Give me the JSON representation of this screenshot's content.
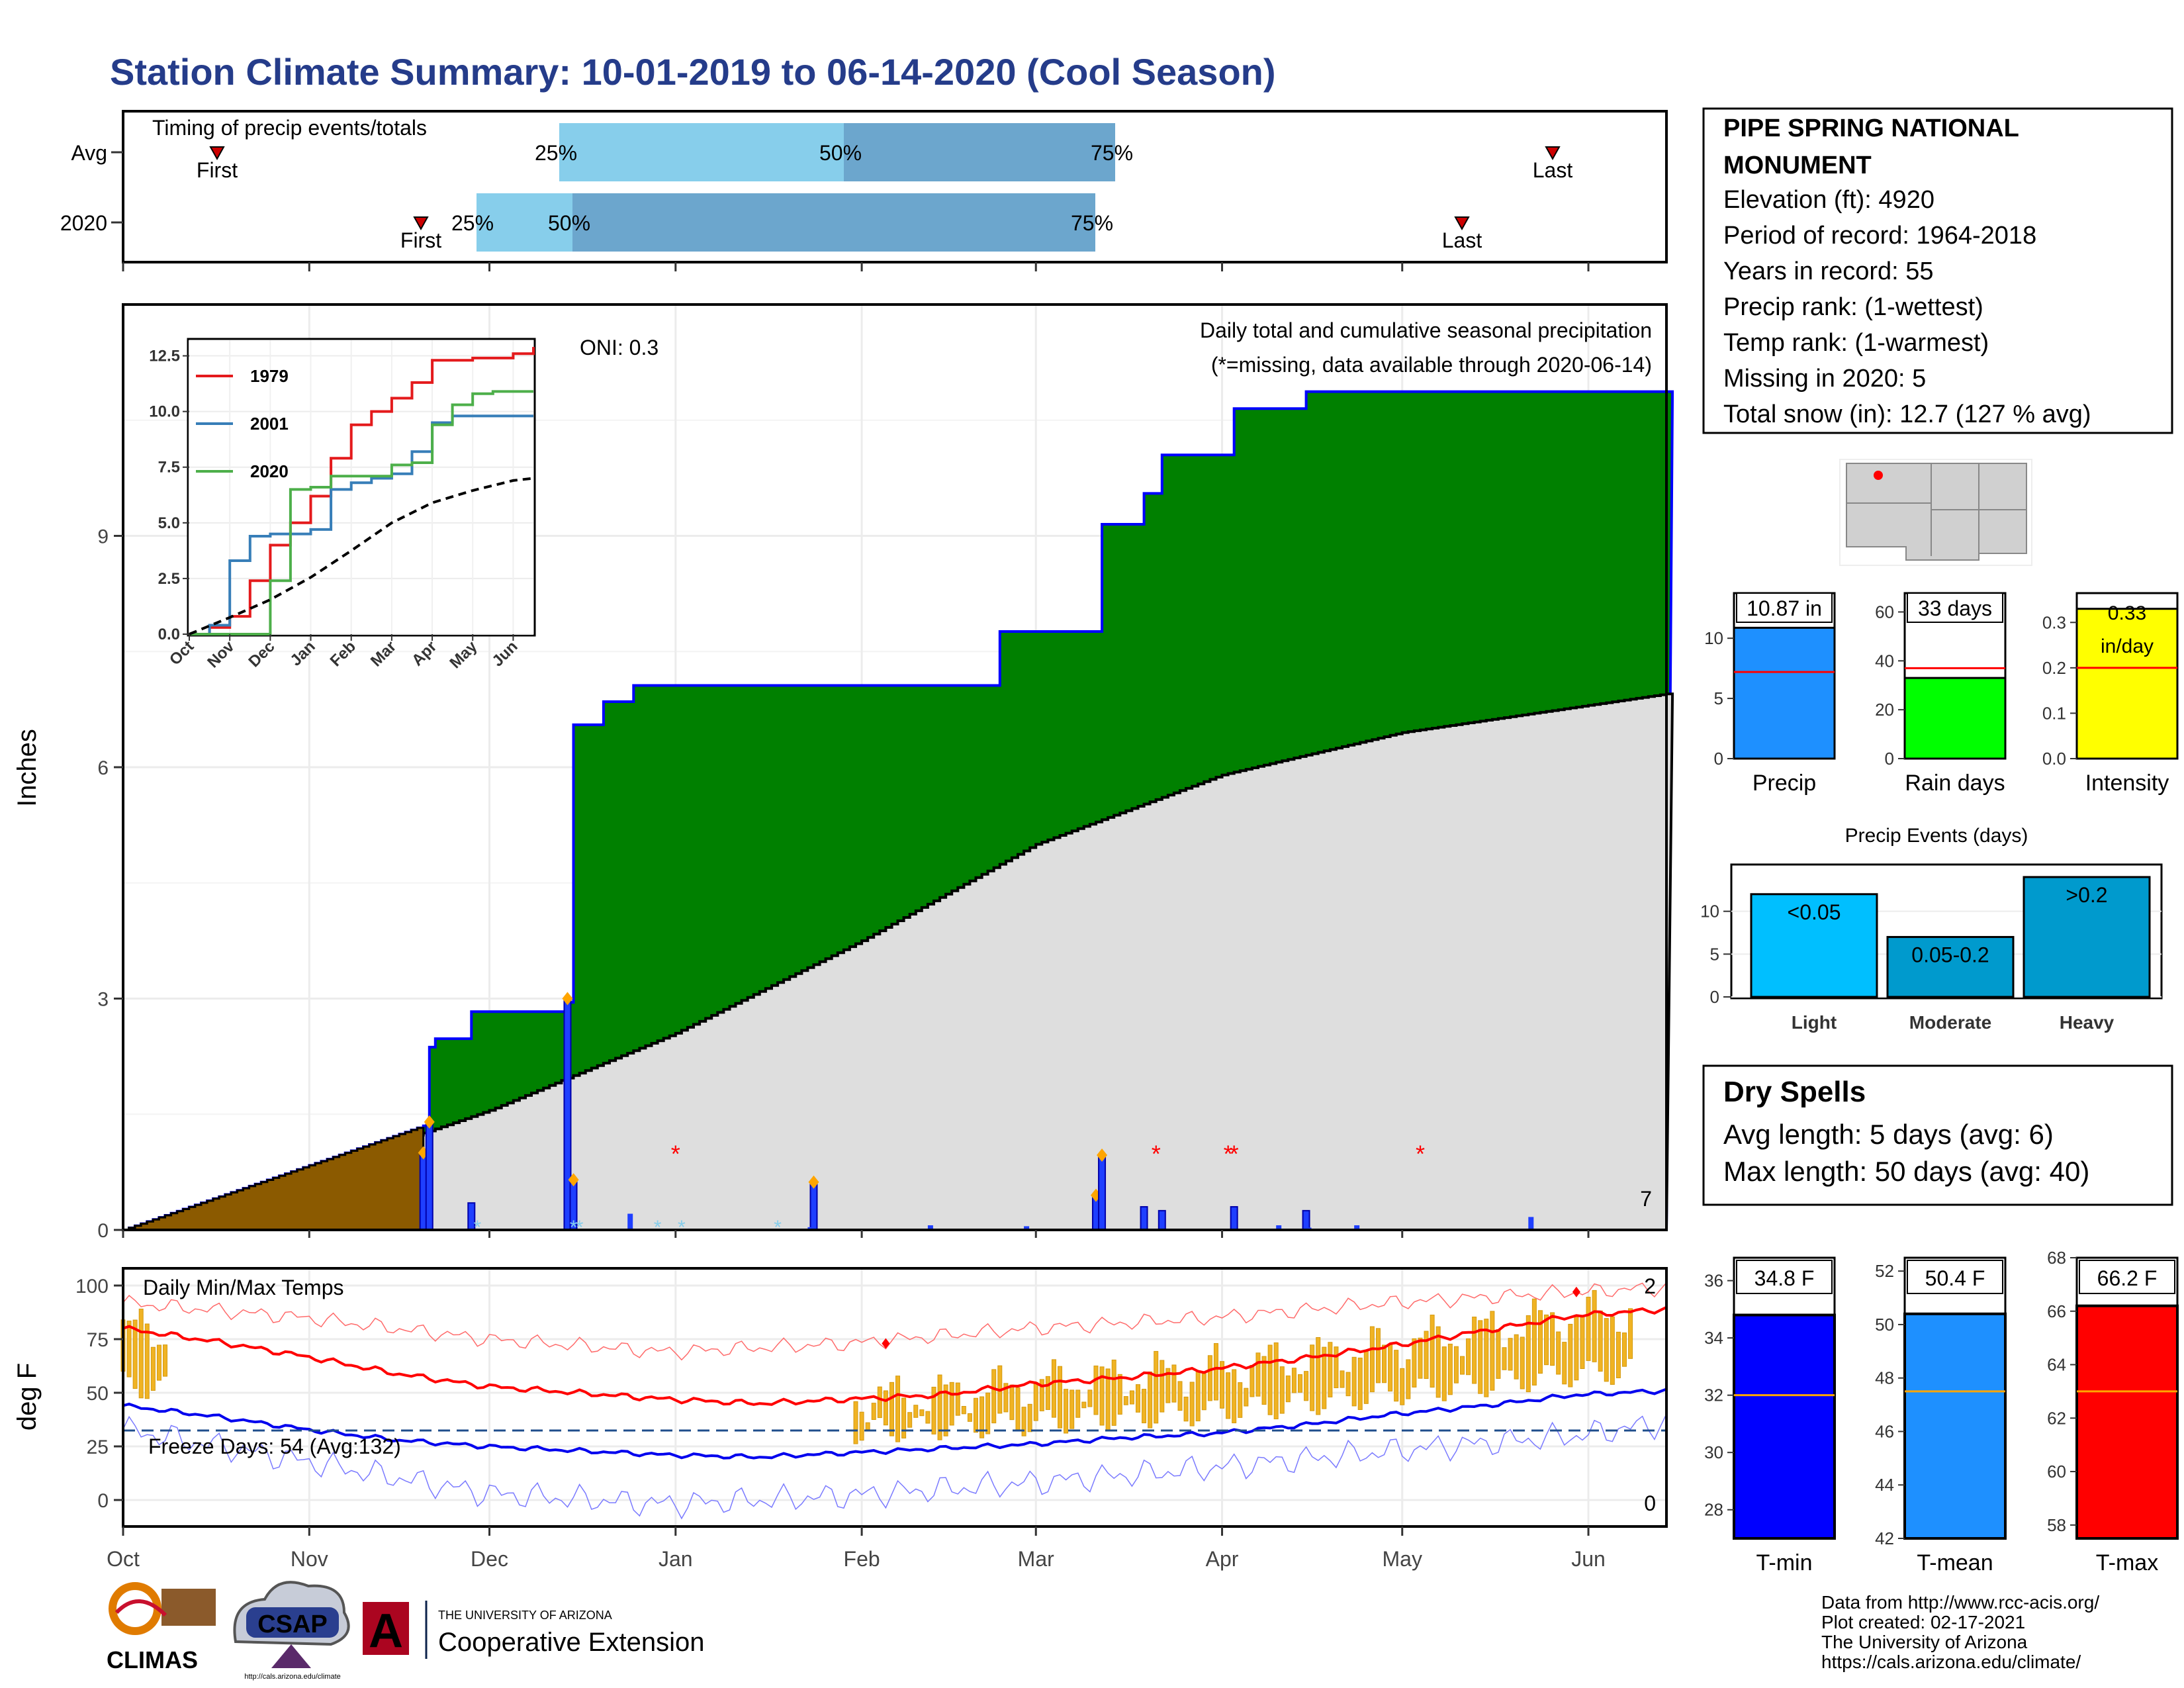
{
  "title": "Station Climate Summary: 10-01-2019 to 06-14-2020 (Cool Season)",
  "timing": {
    "label": "Timing of precip events/totals",
    "rows": [
      "Avg",
      "2020"
    ],
    "first_label": "First",
    "last_label": "Last",
    "p25": "25%",
    "p50": "50%",
    "p75": "75%",
    "colors": {
      "light": "#87ceeb",
      "dark": "#6ca6cd",
      "marker": "#cc0000"
    }
  },
  "main": {
    "ylabel": "Inches",
    "oni": "ONI: 0.3",
    "note1": "Daily total and cumulative seasonal precipitation",
    "note2": "(*=missing, data available through 2020-06-14)",
    "snow_count": "7",
    "yticks": [
      "0",
      "3",
      "6",
      "9"
    ],
    "months": [
      "Oct",
      "Nov",
      "Dec",
      "Jan",
      "Feb",
      "Mar",
      "Apr",
      "May",
      "Jun"
    ]
  },
  "inset": {
    "yticks": [
      "0.0",
      "2.5",
      "5.0",
      "7.5",
      "10.0",
      "12.5"
    ],
    "xticks": [
      "Oct",
      "Nov",
      "Dec",
      "Jan",
      "Feb",
      "Mar",
      "Apr",
      "May",
      "Jun"
    ],
    "legend": [
      {
        "name": "1979",
        "color": "#e41a1c"
      },
      {
        "name": "2001",
        "color": "#377eb8"
      },
      {
        "name": "2020",
        "color": "#4daf4a"
      }
    ]
  },
  "temps": {
    "label": "Daily Min/Max Temps",
    "ylabel": "deg F",
    "freeze": "Freeze Days: 54 (Avg:132)",
    "count_max": "2",
    "count_min": "0",
    "yticks": [
      "0",
      "25",
      "50",
      "75",
      "100"
    ]
  },
  "station": {
    "name1": "PIPE SPRING NATIONAL",
    "name2": "MONUMENT",
    "elev": "Elevation (ft): 4920",
    "period": "Period of record: 1964-2018",
    "years": "Years in record: 55",
    "prank": "Precip rank:  (1-wettest)",
    "trank": "Temp rank:  (1-warmest)",
    "missing": "Missing in 2020: 5",
    "snow": "Total snow (in): 12.7 (127 % avg)"
  },
  "bars": {
    "precip": {
      "label": "Precip",
      "value_label": "10.87 in",
      "ticks": [
        "0",
        "5",
        "10"
      ]
    },
    "rain": {
      "label": "Rain days",
      "value_label": "33 days",
      "ticks": [
        "0",
        "20",
        "40",
        "60"
      ]
    },
    "intensity": {
      "label": "Intensity",
      "value_label1": "0.33",
      "value_label2": "in/day",
      "ticks": [
        "0.0",
        "0.1",
        "0.2",
        "0.3"
      ]
    }
  },
  "events": {
    "title": "Precip Events (days)",
    "ticks": [
      "0",
      "5",
      "10"
    ],
    "cats": [
      "Light",
      "Moderate",
      "Heavy"
    ],
    "labels": [
      "<0.05",
      "0.05-0.2",
      ">0.2"
    ]
  },
  "dry": {
    "title": "Dry Spells",
    "avg": "Avg length: 5 days (avg: 6)",
    "max": "Max length: 50 days (avg: 40)"
  },
  "tbars": {
    "tmin": {
      "label": "T-min",
      "value_label": "34.8 F",
      "ticks": [
        "28",
        "30",
        "32",
        "34",
        "36"
      ]
    },
    "tmean": {
      "label": "T-mean",
      "value_label": "50.4 F",
      "ticks": [
        "42",
        "44",
        "46",
        "48",
        "50",
        "52"
      ]
    },
    "tmax": {
      "label": "T-max",
      "value_label": "66.2 F",
      "ticks": [
        "58",
        "60",
        "62",
        "64",
        "66",
        "68"
      ]
    }
  },
  "credits": {
    "line1": "Data from http://www.rcc-acis.org/",
    "line2": "Plot created: 02-17-2021",
    "line3": "The University of Arizona",
    "line4": "https://cals.arizona.edu/climate/"
  },
  "logos": {
    "climas": "CLIMAS",
    "csap": "CSAP",
    "csap_url": "http://cals.arizona.edu/climate",
    "ua_small": "THE UNIVERSITY OF ARIZONA",
    "coop": "Cooperative Extension",
    "ua_letter": "A"
  },
  "chart_data": [
    {
      "type": "area",
      "title": "Daily total and cumulative seasonal precipitation",
      "ylabel": "Inches",
      "ylim": [
        0,
        12
      ],
      "x_range": [
        "2019-10-01",
        "2020-06-14"
      ],
      "series": [
        {
          "name": "2020",
          "x": [
            "2019-10-01",
            "2019-11-20",
            "2019-11-21",
            "2019-11-22",
            "2019-11-28",
            "2019-12-14",
            "2019-12-15",
            "2019-12-20",
            "2019-12-25",
            "2020-01-24",
            "2020-02-24",
            "2020-03-11",
            "2020-03-12",
            "2020-03-19",
            "2020-03-22",
            "2020-04-03",
            "2020-04-15",
            "2020-06-14"
          ],
          "y": [
            0,
            1.35,
            2.37,
            2.48,
            2.83,
            2.95,
            6.55,
            6.85,
            7.06,
            7.06,
            7.76,
            7.76,
            9.15,
            9.55,
            10.05,
            10.65,
            10.87,
            10.87
          ]
        },
        {
          "name": "Average",
          "x": [
            "2019-10-01",
            "2019-11-01",
            "2019-12-01",
            "2020-01-01",
            "2020-02-01",
            "2020-03-01",
            "2020-04-01",
            "2020-05-01",
            "2020-06-14"
          ],
          "y": [
            0,
            0.75,
            1.55,
            2.55,
            3.75,
            5.0,
            5.9,
            6.45,
            6.95
          ]
        }
      ],
      "daily_precip": {
        "x": [
          "2019-11-20",
          "2019-11-21",
          "2019-11-28",
          "2019-12-14",
          "2019-12-15",
          "2020-01-24",
          "2020-03-11",
          "2020-03-12",
          "2020-03-19",
          "2020-03-22",
          "2020-04-03",
          "2020-04-15"
        ],
        "y": [
          1.0,
          1.4,
          0.35,
          3.0,
          0.65,
          0.62,
          0.45,
          0.97,
          0.3,
          0.25,
          0.3,
          0.25
        ]
      },
      "missing_dates": [
        "2020-01-01",
        "2020-03-21",
        "2020-04-02",
        "2020-04-03",
        "2020-05-04"
      ]
    },
    {
      "type": "line",
      "title": "",
      "xlim": [
        "Oct",
        "Jun"
      ],
      "ylim": [
        0,
        12.5
      ],
      "series": [
        {
          "name": "1979",
          "x": [
            0,
            0.5,
            1,
            1.5,
            2,
            2.5,
            3,
            3.5,
            4,
            4.5,
            5,
            5.5,
            6,
            6.5,
            7,
            7.5,
            8,
            8.5
          ],
          "y": [
            0,
            0.3,
            0.8,
            2.4,
            4.0,
            5.0,
            6.2,
            7.9,
            9.4,
            10.0,
            10.6,
            11.3,
            12.3,
            12.3,
            12.4,
            12.4,
            12.6,
            12.9
          ]
        },
        {
          "name": "2001",
          "x": [
            0,
            0.5,
            1,
            1.5,
            2,
            2.5,
            3,
            3.5,
            4,
            4.5,
            5,
            5.5,
            6,
            6.5,
            7,
            7.5,
            8,
            8.5
          ],
          "y": [
            0,
            0.4,
            3.3,
            4.4,
            4.5,
            4.5,
            4.7,
            6.5,
            6.8,
            7.0,
            7.2,
            8.2,
            9.5,
            9.8,
            9.8,
            9.8,
            9.8,
            9.8
          ]
        },
        {
          "name": "2020",
          "x": [
            0,
            0.5,
            1,
            1.5,
            2,
            2.5,
            3,
            3.5,
            4,
            4.5,
            5,
            5.5,
            6,
            6.5,
            7,
            7.5,
            8,
            8.5
          ],
          "y": [
            0,
            0,
            0,
            0,
            2.4,
            6.5,
            6.6,
            7.1,
            7.1,
            7.1,
            7.6,
            7.7,
            9.4,
            10.3,
            10.8,
            10.9,
            10.9,
            10.9
          ]
        },
        {
          "name": "Average",
          "x": [
            0,
            1,
            2,
            3,
            4,
            5,
            6,
            7,
            8,
            8.5
          ],
          "y": [
            0,
            0.75,
            1.55,
            2.55,
            3.75,
            5.0,
            5.9,
            6.45,
            6.9,
            7.0
          ]
        }
      ]
    },
    {
      "type": "line",
      "title": "Daily Min/Max Temps",
      "ylabel": "deg F",
      "ylim": [
        -15,
        105
      ],
      "series": [
        {
          "name": "Avg max",
          "x": [
            0,
            0.5,
            1,
            1.5,
            2,
            2.5,
            3,
            3.5,
            4,
            4.5,
            5,
            5.5,
            6,
            6.5,
            7,
            7.5,
            8,
            8.5
          ],
          "y": [
            80,
            74,
            67,
            59,
            53,
            50,
            47,
            45,
            47,
            49,
            54,
            57,
            61,
            66,
            72,
            79,
            86,
            89
          ]
        },
        {
          "name": "Avg min",
          "x": [
            0,
            0.5,
            1,
            1.5,
            2,
            2.5,
            3,
            3.5,
            4,
            4.5,
            5,
            5.5,
            6,
            6.5,
            7,
            7.5,
            8,
            8.5
          ],
          "y": [
            44,
            39,
            33,
            28,
            25,
            23,
            21,
            20,
            22,
            24,
            26,
            29,
            31,
            35,
            40,
            44,
            49,
            51
          ]
        },
        {
          "name": "Record max",
          "x": [
            0,
            1,
            2,
            3,
            4,
            5,
            6,
            7,
            8,
            8.5
          ],
          "y": [
            92,
            85,
            75,
            69,
            73,
            80,
            85,
            92,
            97,
            99
          ]
        },
        {
          "name": "Record min",
          "x": [
            0,
            1,
            2,
            3,
            4,
            5,
            6,
            7,
            8,
            8.5
          ],
          "y": [
            33,
            18,
            3,
            -2,
            2,
            8,
            15,
            23,
            30,
            36
          ]
        }
      ],
      "freeze_line": 32
    },
    {
      "type": "bar",
      "title": "",
      "categories": [
        "Precip",
        "Rain days",
        "Intensity"
      ],
      "values": [
        10.87,
        33,
        0.33
      ],
      "averages": [
        7.2,
        37,
        0.2
      ]
    },
    {
      "type": "bar",
      "title": "Precip Events (days)",
      "categories": [
        "Light",
        "Moderate",
        "Heavy"
      ],
      "values": [
        12,
        7,
        14
      ],
      "ylim": [
        0,
        15
      ]
    },
    {
      "type": "bar",
      "title": "",
      "categories": [
        "T-min",
        "T-mean",
        "T-max"
      ],
      "values": [
        34.8,
        50.4,
        66.2
      ],
      "averages": [
        32.0,
        47.5,
        63.0
      ]
    }
  ]
}
